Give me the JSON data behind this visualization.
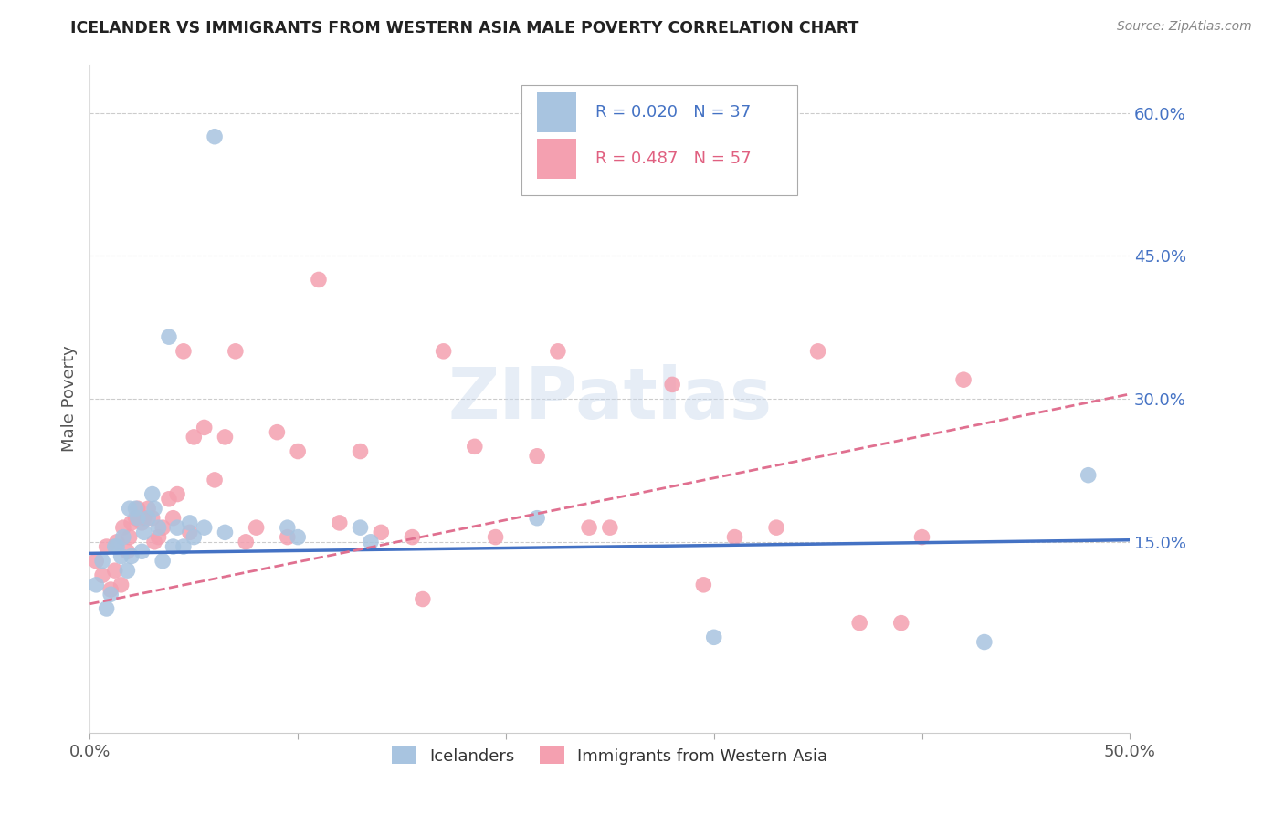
{
  "title": "ICELANDER VS IMMIGRANTS FROM WESTERN ASIA MALE POVERTY CORRELATION CHART",
  "source": "Source: ZipAtlas.com",
  "ylabel": "Male Poverty",
  "xlim": [
    0.0,
    0.5
  ],
  "ylim": [
    -0.05,
    0.65
  ],
  "color_blue": "#a8c4e0",
  "color_pink": "#f4a0b0",
  "color_blue_text": "#4472c4",
  "color_pink_text": "#e06080",
  "color_line_blue": "#4472c4",
  "color_line_pink": "#e07090",
  "watermark": "ZIPatlas",
  "blue_line_x": [
    0.0,
    0.5
  ],
  "blue_line_y": [
    0.138,
    0.152
  ],
  "pink_line_x": [
    0.0,
    0.5
  ],
  "pink_line_y": [
    0.085,
    0.305
  ],
  "icelanders_x": [
    0.003,
    0.006,
    0.008,
    0.01,
    0.012,
    0.013,
    0.015,
    0.016,
    0.018,
    0.019,
    0.02,
    0.022,
    0.023,
    0.025,
    0.026,
    0.028,
    0.03,
    0.031,
    0.033,
    0.035,
    0.038,
    0.04,
    0.042,
    0.045,
    0.048,
    0.05,
    0.055,
    0.06,
    0.065,
    0.095,
    0.1,
    0.13,
    0.135,
    0.215,
    0.3,
    0.43,
    0.48
  ],
  "icelanders_y": [
    0.105,
    0.13,
    0.08,
    0.095,
    0.145,
    0.145,
    0.135,
    0.155,
    0.12,
    0.185,
    0.135,
    0.185,
    0.175,
    0.14,
    0.16,
    0.175,
    0.2,
    0.185,
    0.165,
    0.13,
    0.365,
    0.145,
    0.165,
    0.145,
    0.17,
    0.155,
    0.165,
    0.575,
    0.16,
    0.165,
    0.155,
    0.165,
    0.15,
    0.175,
    0.05,
    0.045,
    0.22
  ],
  "western_asia_x": [
    0.003,
    0.006,
    0.008,
    0.01,
    0.012,
    0.013,
    0.015,
    0.016,
    0.018,
    0.019,
    0.02,
    0.022,
    0.023,
    0.025,
    0.026,
    0.028,
    0.03,
    0.031,
    0.033,
    0.035,
    0.038,
    0.04,
    0.042,
    0.045,
    0.048,
    0.05,
    0.055,
    0.06,
    0.065,
    0.07,
    0.075,
    0.08,
    0.09,
    0.095,
    0.1,
    0.11,
    0.12,
    0.13,
    0.14,
    0.155,
    0.16,
    0.17,
    0.185,
    0.195,
    0.215,
    0.225,
    0.24,
    0.25,
    0.28,
    0.295,
    0.31,
    0.33,
    0.35,
    0.37,
    0.39,
    0.4,
    0.42
  ],
  "western_asia_y": [
    0.13,
    0.115,
    0.145,
    0.1,
    0.12,
    0.15,
    0.105,
    0.165,
    0.14,
    0.155,
    0.17,
    0.175,
    0.185,
    0.17,
    0.175,
    0.185,
    0.175,
    0.15,
    0.155,
    0.165,
    0.195,
    0.175,
    0.2,
    0.35,
    0.16,
    0.26,
    0.27,
    0.215,
    0.26,
    0.35,
    0.15,
    0.165,
    0.265,
    0.155,
    0.245,
    0.425,
    0.17,
    0.245,
    0.16,
    0.155,
    0.09,
    0.35,
    0.25,
    0.155,
    0.24,
    0.35,
    0.165,
    0.165,
    0.315,
    0.105,
    0.155,
    0.165,
    0.35,
    0.065,
    0.065,
    0.155,
    0.32
  ]
}
